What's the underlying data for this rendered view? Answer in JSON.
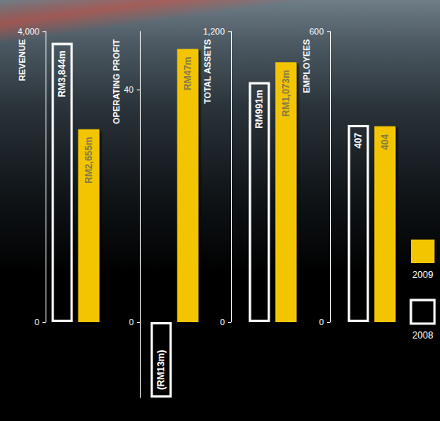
{
  "chart_data": [
    {
      "type": "bar",
      "title": "REVENUE",
      "categories": [
        null
      ],
      "ylim": [
        0,
        4000
      ],
      "yticks": [
        0,
        {
          "value": 4000,
          "label": "4,000"
        }
      ],
      "data_labels": true,
      "series": [
        {
          "name": "2008",
          "color": "#ffffff",
          "values": [
            3844
          ],
          "value_labels": [
            "RM3,844m"
          ]
        },
        {
          "name": "2009",
          "color": "#f2c500",
          "values": [
            2655
          ],
          "value_labels": [
            "RM2,655m"
          ]
        }
      ]
    },
    {
      "type": "bar",
      "title": "OPERATING PROFIT",
      "categories": [
        null
      ],
      "ylim": [
        -13,
        50
      ],
      "yticks": [
        0,
        40
      ],
      "data_labels": true,
      "series": [
        {
          "name": "2008",
          "color": "#ffffff",
          "values": [
            -13
          ],
          "value_labels": [
            "(RM13m)"
          ]
        },
        {
          "name": "2009",
          "color": "#f2c500",
          "values": [
            47
          ],
          "value_labels": [
            "RM47m"
          ]
        }
      ]
    },
    {
      "type": "bar",
      "title": "TOTAL ASSETS",
      "categories": [
        null
      ],
      "ylim": [
        0,
        1200
      ],
      "yticks": [
        0,
        {
          "value": 1200,
          "label": "1,200"
        }
      ],
      "data_labels": true,
      "series": [
        {
          "name": "2008",
          "color": "#ffffff",
          "values": [
            991
          ],
          "value_labels": [
            "RM991m"
          ]
        },
        {
          "name": "2009",
          "color": "#f2c500",
          "values": [
            1073
          ],
          "value_labels": [
            "RM1,073m"
          ]
        }
      ]
    },
    {
      "type": "bar",
      "title": "EMPLOYEES",
      "categories": [
        null
      ],
      "ylim": [
        0,
        600
      ],
      "yticks": [
        0,
        600
      ],
      "data_labels": true,
      "legend": "right",
      "series": [
        {
          "name": "2008",
          "color": "#ffffff",
          "values": [
            407
          ]
        },
        {
          "name": "2009",
          "color": "#f2c500",
          "values": [
            404
          ]
        }
      ]
    }
  ]
}
